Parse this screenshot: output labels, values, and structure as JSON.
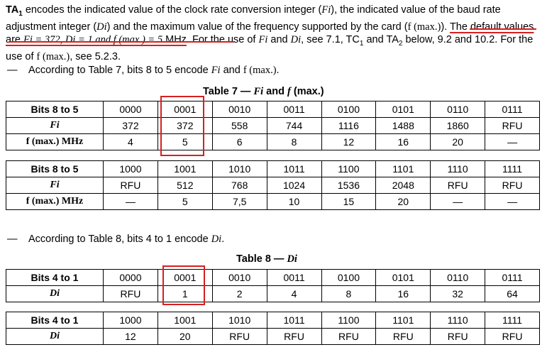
{
  "para": {
    "lead": "TA",
    "lead_sub": "1",
    "t1": " encodes the indicated value of the clock rate conversion integer (",
    "fi": "Fi",
    "t2": "), the indicated value of the baud rate adjustment integer (",
    "di": "Di",
    "t3": ") and the maximum value of the frequency supported by the card (",
    "fmax": "f (max.)",
    "t4": "). ",
    "u1": "The default values are ",
    "u2": "Fi = 372, Di = 1 and f (max.) = 5",
    "u3": " MHz",
    "t5": ". For the use of ",
    "fi2": "Fi",
    "t6": " and ",
    "di2": "Di",
    "t7": ", see 7.1, TC",
    "tc_sub": "1",
    "t8": " and TA",
    "ta_sub": "2",
    "t9": " below, 9.2 and 10.2. For the use of ",
    "fmax2": "f (max.)",
    "t10": ", see 5.2.3."
  },
  "bullet1": {
    "dash": "—",
    "text": "According to Table 7, bits 8 to 5 encode ",
    "fi": "Fi",
    "mid": " and ",
    "fmax": "f (max.)",
    "end": "."
  },
  "bullet2": {
    "dash": "—",
    "text": "According to Table 8, bits 4 to 1 encode ",
    "di": "Di",
    "end": "."
  },
  "table7": {
    "caption": "Table 7 — ",
    "caption_it": "Fi",
    "caption_mid": " and ",
    "caption_it2": "f",
    "caption_end": " (max.)",
    "block1": {
      "row_labels": [
        "Bits 8 to 5",
        "Fi",
        "f (max.)  MHz"
      ],
      "rows": [
        [
          "0000",
          "0001",
          "0010",
          "0011",
          "0100",
          "0101",
          "0110",
          "0111"
        ],
        [
          "372",
          "372",
          "558",
          "744",
          "1116",
          "1488",
          "1860",
          "RFU"
        ],
        [
          "4",
          "5",
          "6",
          "8",
          "12",
          "16",
          "20",
          "—"
        ]
      ]
    },
    "block2": {
      "row_labels": [
        "Bits 8 to 5",
        "Fi",
        "f (max.)  MHz"
      ],
      "rows": [
        [
          "1000",
          "1001",
          "1010",
          "1011",
          "1100",
          "1101",
          "1110",
          "1111"
        ],
        [
          "RFU",
          "512",
          "768",
          "1024",
          "1536",
          "2048",
          "RFU",
          "RFU"
        ],
        [
          "—",
          "5",
          "7,5",
          "10",
          "15",
          "20",
          "—",
          "—"
        ]
      ]
    }
  },
  "table8": {
    "caption": "Table 8 — ",
    "caption_it": "Di",
    "block1": {
      "row_labels": [
        "Bits 4 to 1",
        "Di"
      ],
      "rows": [
        [
          "0000",
          "0001",
          "0010",
          "0011",
          "0100",
          "0101",
          "0110",
          "0111"
        ],
        [
          "RFU",
          "1",
          "2",
          "4",
          "8",
          "16",
          "32",
          "64"
        ]
      ]
    },
    "block2": {
      "row_labels": [
        "Bits 4 to 1",
        "Di"
      ],
      "rows": [
        [
          "1000",
          "1001",
          "1010",
          "1011",
          "1100",
          "1101",
          "1110",
          "1111"
        ],
        [
          "12",
          "20",
          "RFU",
          "RFU",
          "RFU",
          "RFU",
          "RFU",
          "RFU"
        ]
      ]
    }
  },
  "colors": {
    "highlight": "#d62020"
  }
}
